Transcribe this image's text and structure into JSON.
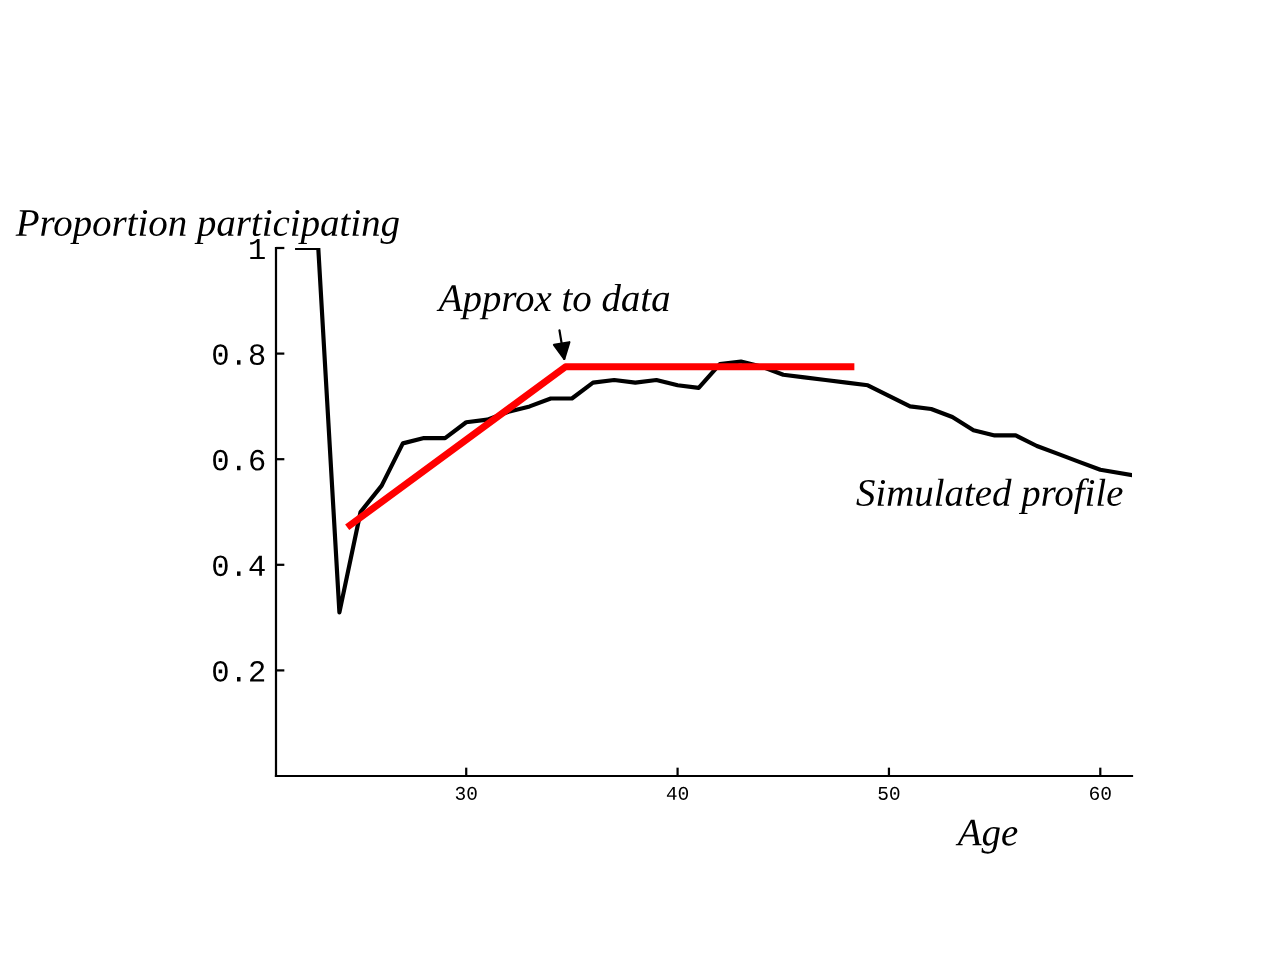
{
  "chart_data": {
    "type": "line",
    "xlabel": "Age",
    "ylabel": "Proportion participating",
    "series": [
      {
        "name": "Simulated profile",
        "color": "#000000",
        "x": [
          22,
          23,
          24,
          25,
          26,
          27,
          28,
          29,
          30,
          31,
          32,
          33,
          34,
          35,
          36,
          37,
          38,
          39,
          40,
          41,
          42,
          43,
          44,
          45,
          46,
          47,
          48,
          49,
          50,
          51,
          52,
          53,
          54,
          55,
          56,
          57,
          58,
          59,
          60,
          61.5
        ],
        "values": [
          1,
          1,
          0.31,
          0.5,
          0.55,
          0.63,
          0.64,
          0.64,
          0.67,
          0.675,
          0.69,
          0.7,
          0.715,
          0.715,
          0.745,
          0.75,
          0.745,
          0.75,
          0.74,
          0.735,
          0.78,
          0.785,
          0.775,
          0.76,
          0.755,
          0.75,
          0.745,
          0.74,
          0.72,
          0.7,
          0.695,
          0.68,
          0.655,
          0.645,
          0.645,
          0.625,
          0.61,
          0.595,
          0.58,
          0.57
        ]
      },
      {
        "name": "Approx to data",
        "color": "#ff0000",
        "x": [
          24.5,
          34.7,
          48.2
        ],
        "values": [
          0.475,
          0.775,
          0.775
        ]
      }
    ],
    "xlim": [
      21,
      61.5
    ],
    "ylim": [
      0,
      1
    ],
    "xticks": [
      30,
      40,
      50,
      60
    ],
    "yticks": [
      0.2,
      0.4,
      0.6,
      0.8,
      1
    ],
    "grid": false,
    "legend": false
  }
}
